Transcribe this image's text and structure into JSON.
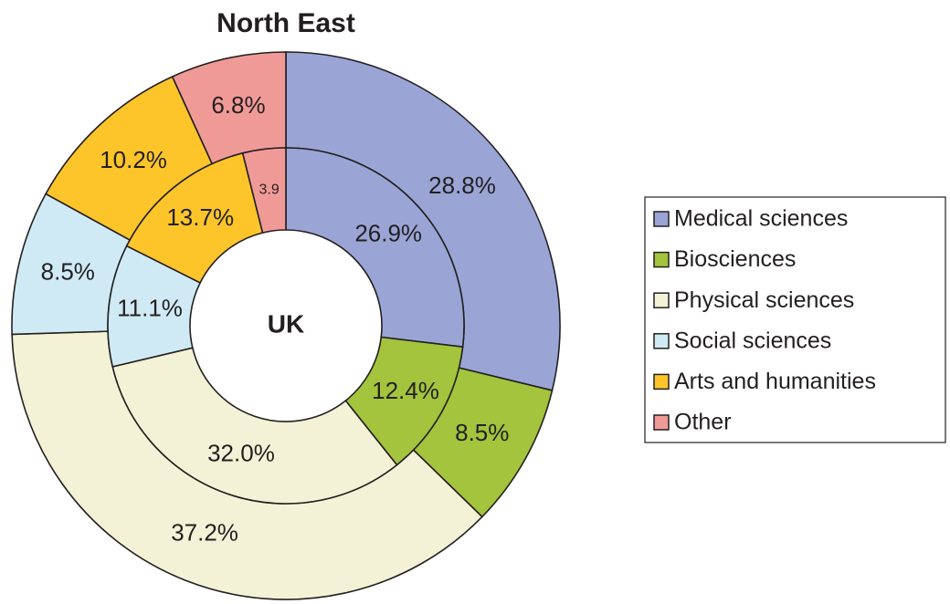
{
  "chart_data": {
    "type": "pie",
    "categories": [
      "Medical sciences",
      "Biosciences",
      "Physical sciences",
      "Social sciences",
      "Arts and humanities",
      "Other"
    ],
    "colors": [
      "#9aa5d6",
      "#a3c43c",
      "#f4f2d6",
      "#cfeaf4",
      "#fdc52a",
      "#f09a98"
    ],
    "series": [
      {
        "name": "North East",
        "values": [
          28.8,
          8.5,
          37.2,
          8.5,
          10.2,
          6.8
        ],
        "value_labels": [
          "28.8%",
          "8.5%",
          "37.2%",
          "8.5%",
          "10.2%",
          "6.8%"
        ]
      },
      {
        "name": "UK",
        "values": [
          26.9,
          12.4,
          32.0,
          11.1,
          13.7,
          3.9
        ],
        "value_labels": [
          "26.9%",
          "12.4%",
          "32.0%",
          "11.1%",
          "13.7%",
          "3.9"
        ]
      }
    ],
    "legend": "right"
  }
}
